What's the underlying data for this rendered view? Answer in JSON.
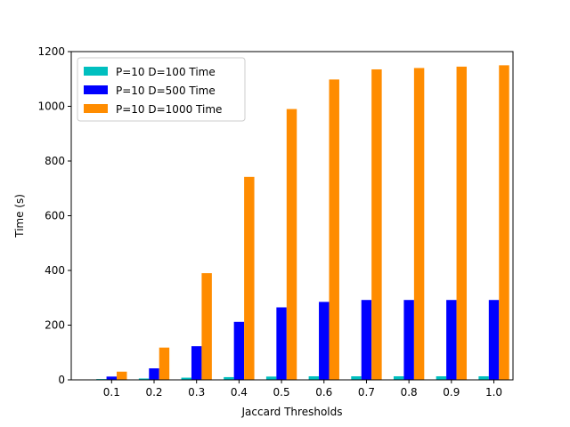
{
  "chart_data": {
    "type": "bar",
    "title": "",
    "xlabel": "Jaccard Thresholds",
    "ylabel": "Time (s)",
    "categories": [
      "0.1",
      "0.2",
      "0.3",
      "0.4",
      "0.5",
      "0.6",
      "0.7",
      "0.8",
      "0.9",
      "1.0"
    ],
    "ylim": [
      0,
      1200
    ],
    "yticks": [
      0,
      200,
      400,
      600,
      800,
      1000,
      1200
    ],
    "grid": false,
    "legend_position": "upper-left",
    "series": [
      {
        "name": "P=10 D=100 Time",
        "color": "#00bfbf",
        "values": [
          3,
          5,
          8,
          10,
          12,
          13,
          13,
          13,
          13,
          13
        ]
      },
      {
        "name": "P=10 D=500 Time",
        "color": "#0000ff",
        "values": [
          12,
          42,
          123,
          212,
          265,
          285,
          292,
          292,
          292,
          292
        ]
      },
      {
        "name": "P=10 D=1000 Time",
        "color": "#ff8c00",
        "values": [
          30,
          118,
          390,
          742,
          990,
          1098,
          1135,
          1140,
          1145,
          1150
        ]
      }
    ]
  }
}
